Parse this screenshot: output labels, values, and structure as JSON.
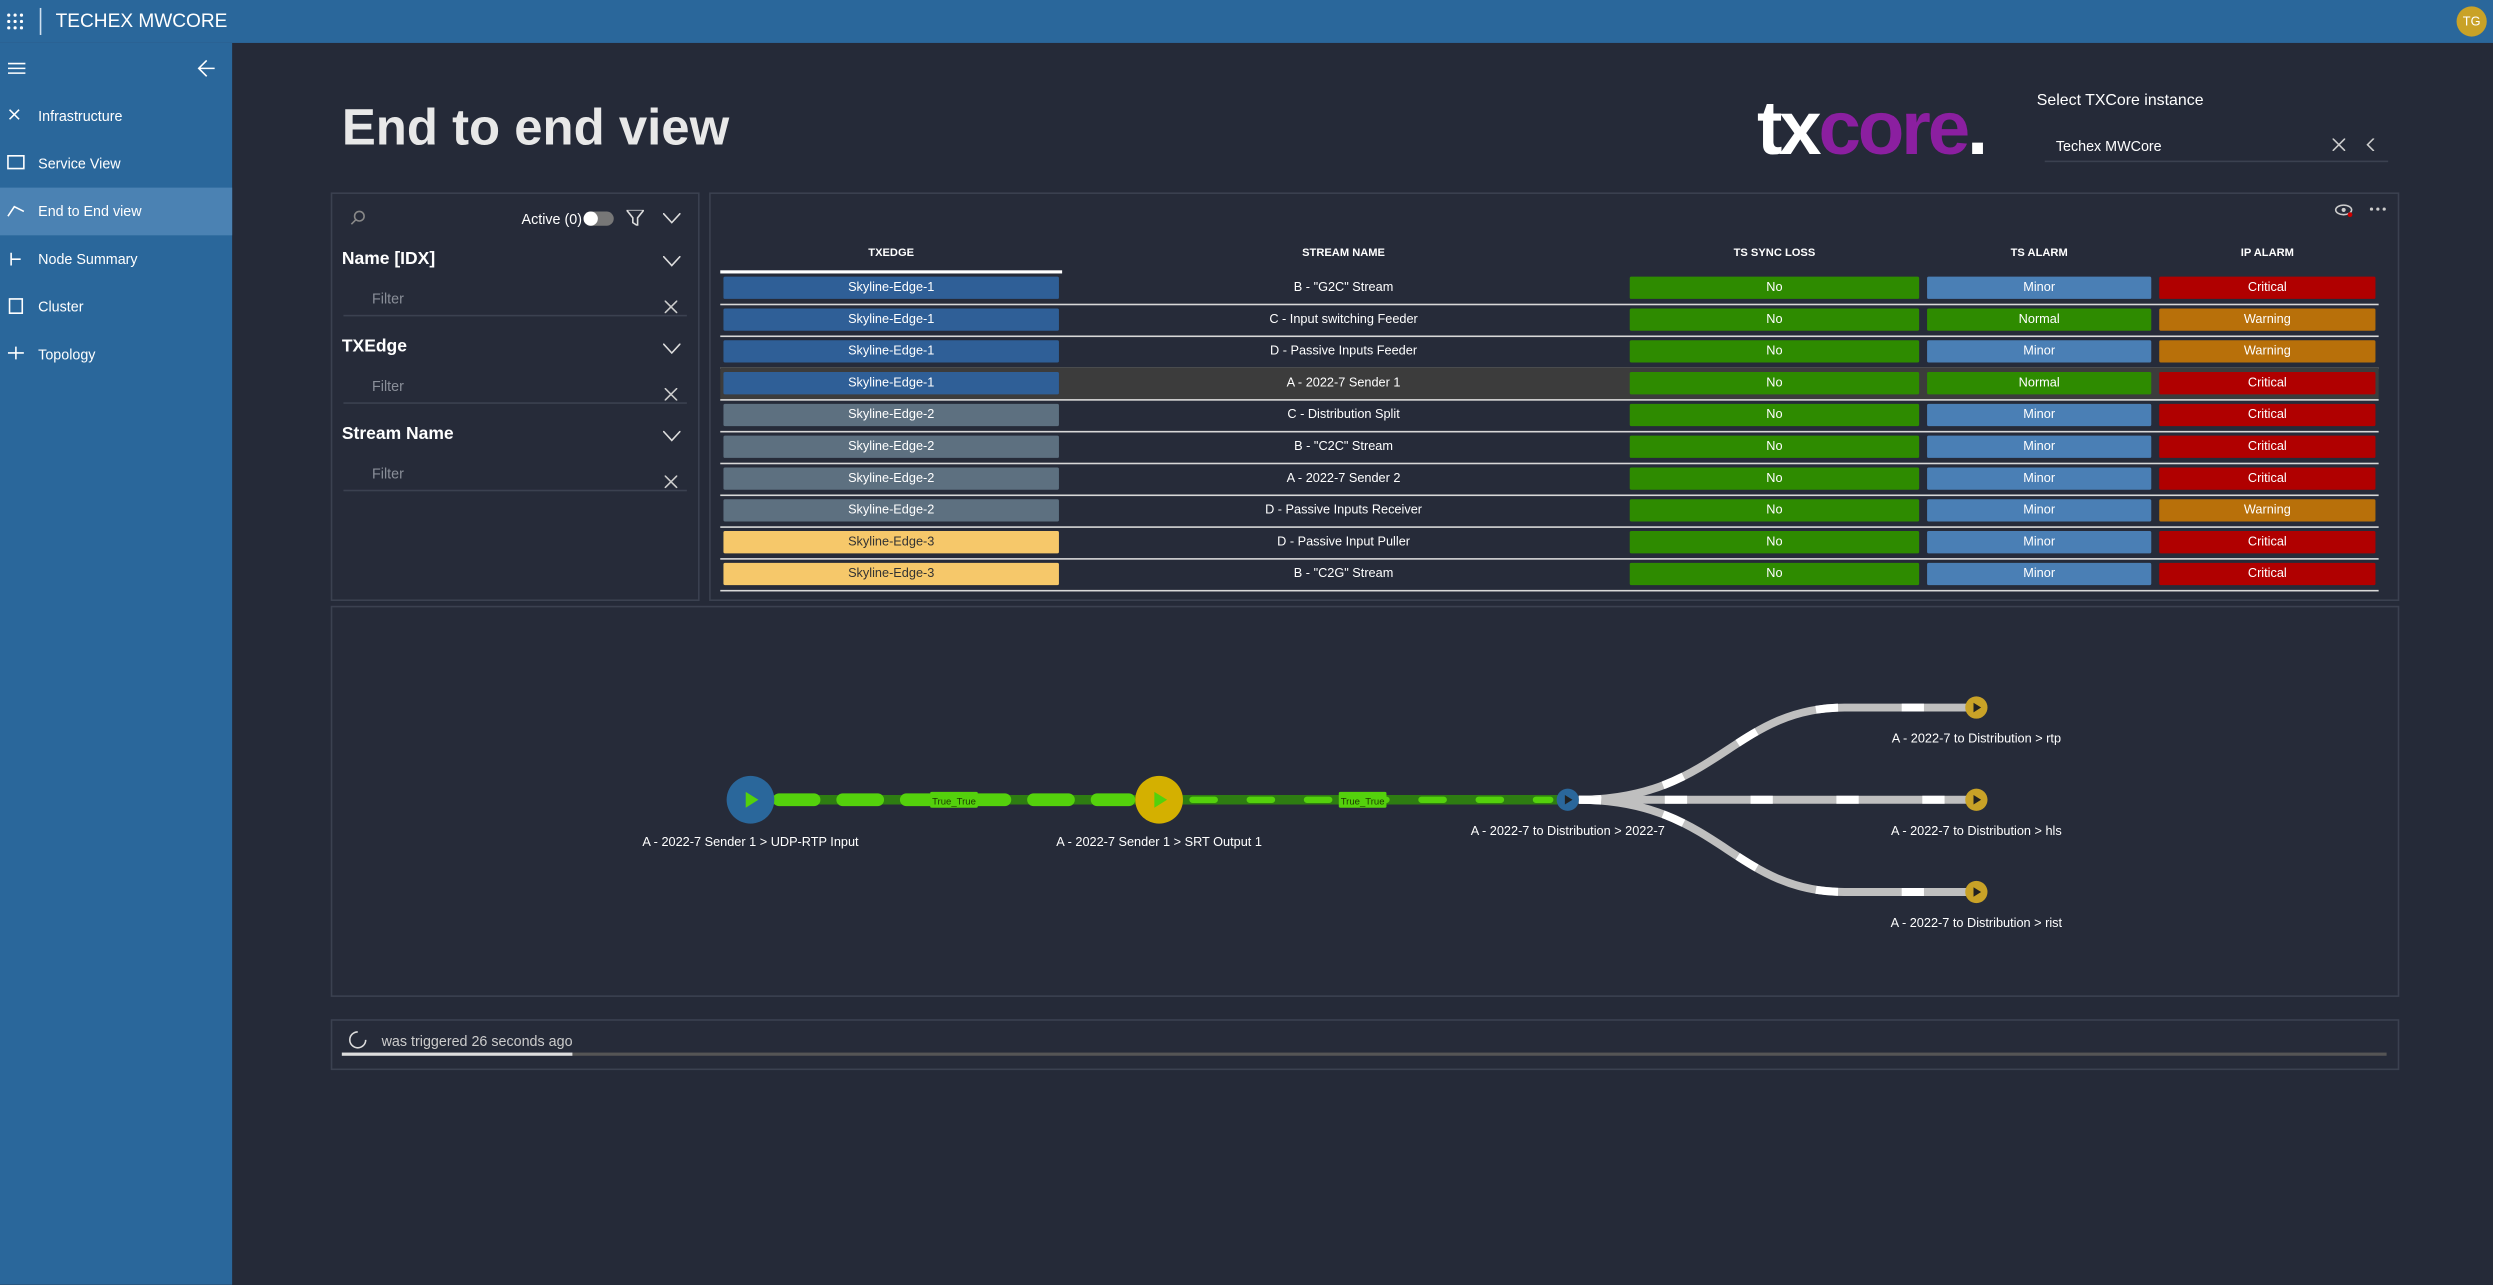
{
  "header": {
    "app_title": "TECHEX MWCORE",
    "avatar": "TG"
  },
  "nav": [
    "Infrastructure",
    "Service View",
    "End to End view",
    "Node Summary",
    "Cluster",
    "Topology"
  ],
  "page_title": "End to end view",
  "logo": {
    "tx": "tx",
    "core": "core",
    "dot": "."
  },
  "instance": {
    "label": "Select TXCore instance",
    "value": "Techex MWCore"
  },
  "filters": {
    "active": "Active (0)",
    "sections": [
      "Name [IDX]",
      "TXEdge",
      "Stream Name"
    ],
    "placeholder": "Filter"
  },
  "table": {
    "columns": [
      "TXEDGE",
      "STREAM NAME",
      "TS SYNC LOSS",
      "TS ALARM",
      "IP ALARM"
    ],
    "rows": [
      [
        "Skyline-Edge-1",
        "B - \"G2C\" Stream",
        "No",
        "Minor",
        "Critical"
      ],
      [
        "Skyline-Edge-1",
        "C - Input switching Feeder",
        "No",
        "Normal",
        "Warning"
      ],
      [
        "Skyline-Edge-1",
        "D - Passive Inputs Feeder",
        "No",
        "Minor",
        "Warning"
      ],
      [
        "Skyline-Edge-1",
        "A - 2022-7 Sender 1",
        "No",
        "Normal",
        "Critical"
      ],
      [
        "Skyline-Edge-2",
        "C - Distribution Split",
        "No",
        "Minor",
        "Critical"
      ],
      [
        "Skyline-Edge-2",
        "B - \"C2C\" Stream",
        "No",
        "Minor",
        "Critical"
      ],
      [
        "Skyline-Edge-2",
        "A - 2022-7 Sender 2",
        "No",
        "Minor",
        "Critical"
      ],
      [
        "Skyline-Edge-2",
        "D - Passive Inputs Receiver",
        "No",
        "Minor",
        "Warning"
      ],
      [
        "Skyline-Edge-3",
        "D - Passive Input Puller",
        "No",
        "Minor",
        "Critical"
      ],
      [
        "Skyline-Edge-3",
        "B - \"C2G\" Stream",
        "No",
        "Minor",
        "Critical"
      ]
    ]
  },
  "diagram": {
    "nodes": [
      "A - 2022-7 Sender 1 > UDP-RTP Input",
      "A - 2022-7 Sender 1 > SRT Output 1",
      "A - 2022-7 to Distribution > 2022-7",
      "A - 2022-7 to Distribution > rtp",
      "A - 2022-7 to Distribution > hls",
      "A - 2022-7 to Distribution > rist"
    ],
    "edge_labels": [
      "True_True",
      "True_True"
    ]
  },
  "status": "was triggered 26 seconds ago"
}
